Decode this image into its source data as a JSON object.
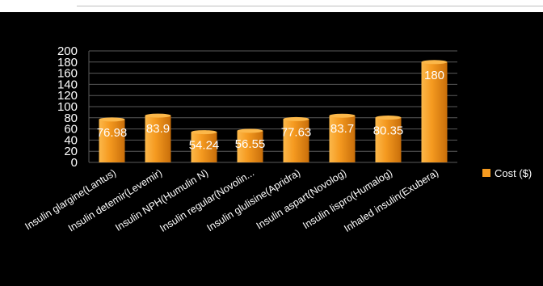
{
  "colors": {
    "background": "#000000",
    "bar_light": "#fcb84a",
    "bar_mid": "#f59a20",
    "bar_dark": "#c86e0a",
    "gridline": "#5a5a5a",
    "text": "#ffffff"
  },
  "legend": {
    "label": "Cost ($)"
  },
  "chart_data": {
    "type": "bar",
    "categories": [
      "Insulin glargine(Lantus)",
      "Insulin detemir(Levemir)",
      "Insulin NPH(Humulin N)",
      "Insulin regular(Novolin...",
      "Insulin glulisine(Apridra)",
      "Insulin aspart(Novolog)",
      "Insulin lispro(Humalog)",
      "Inhaled insulin(Exubera)"
    ],
    "series": [
      {
        "name": "Cost ($)",
        "values": [
          76.98,
          83.9,
          54.24,
          56.55,
          77.63,
          83.7,
          80.35,
          180
        ],
        "labels": [
          "76.98",
          "83.9",
          "54.24",
          "56.55",
          "77.63",
          "83.7",
          "80.35",
          "180"
        ]
      }
    ],
    "ylim": [
      0,
      200
    ],
    "yticks": [
      0,
      20,
      40,
      60,
      80,
      100,
      120,
      140,
      160,
      180,
      200
    ],
    "grid": true,
    "legend_position": "right",
    "title": "",
    "xlabel": "",
    "ylabel": ""
  }
}
